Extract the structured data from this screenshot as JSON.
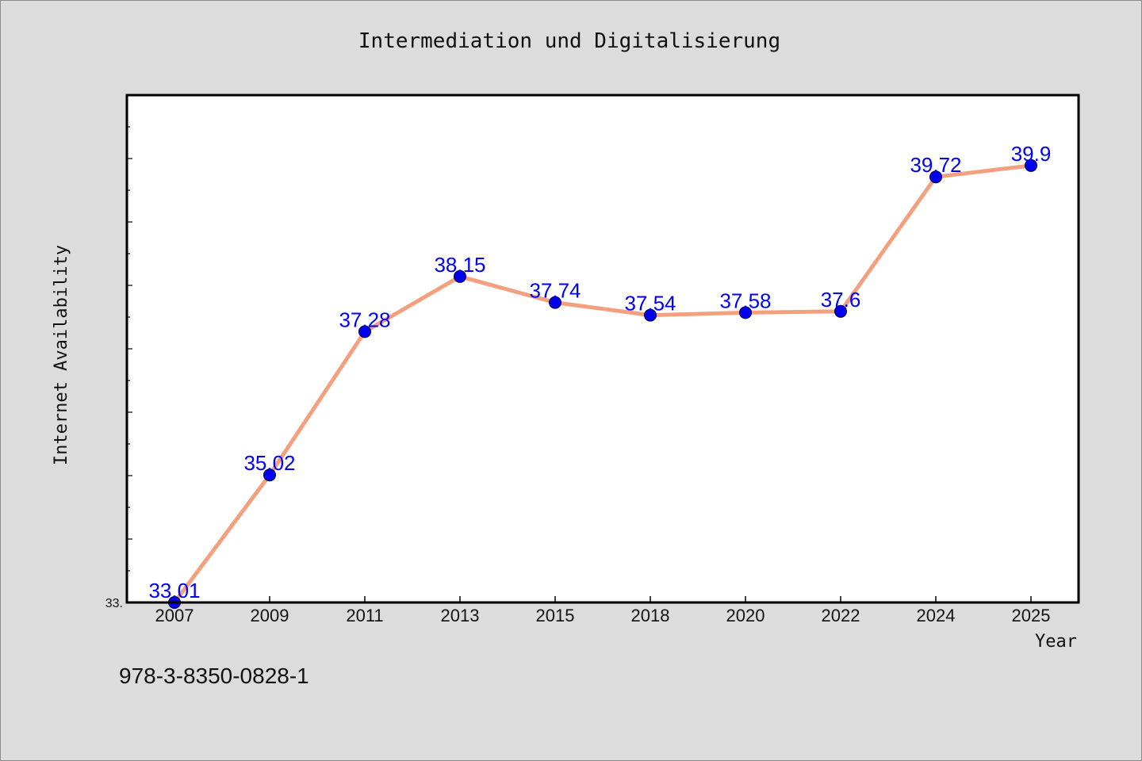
{
  "chart_data": {
    "type": "line",
    "title": "Intermediation und Digitalisierung",
    "xlabel": "Year",
    "ylabel": "Internet Availability",
    "categories": [
      "2007",
      "2009",
      "2011",
      "2013",
      "2015",
      "2018",
      "2020",
      "2022",
      "2024",
      "2025"
    ],
    "series": [
      {
        "values": [
          33.01,
          35.02,
          37.28,
          38.15,
          37.74,
          37.54,
          37.58,
          37.6,
          39.72,
          39.9
        ],
        "data_labels": [
          "33.01",
          "35.02",
          "37.28",
          "38.15",
          "37.74",
          "37.54",
          "37.58",
          "37.6",
          "39.72",
          "39.9"
        ],
        "line_color": "#f4a07f",
        "marker_color": "#0000ee"
      }
    ],
    "ylim": [
      33.01,
      41.01
    ],
    "ytick_labels": [
      "33."
    ],
    "grid": false,
    "background": "#ffffff",
    "outer_background": "#dcdcdc"
  },
  "footer_note": "978-3-8350-0828-1"
}
